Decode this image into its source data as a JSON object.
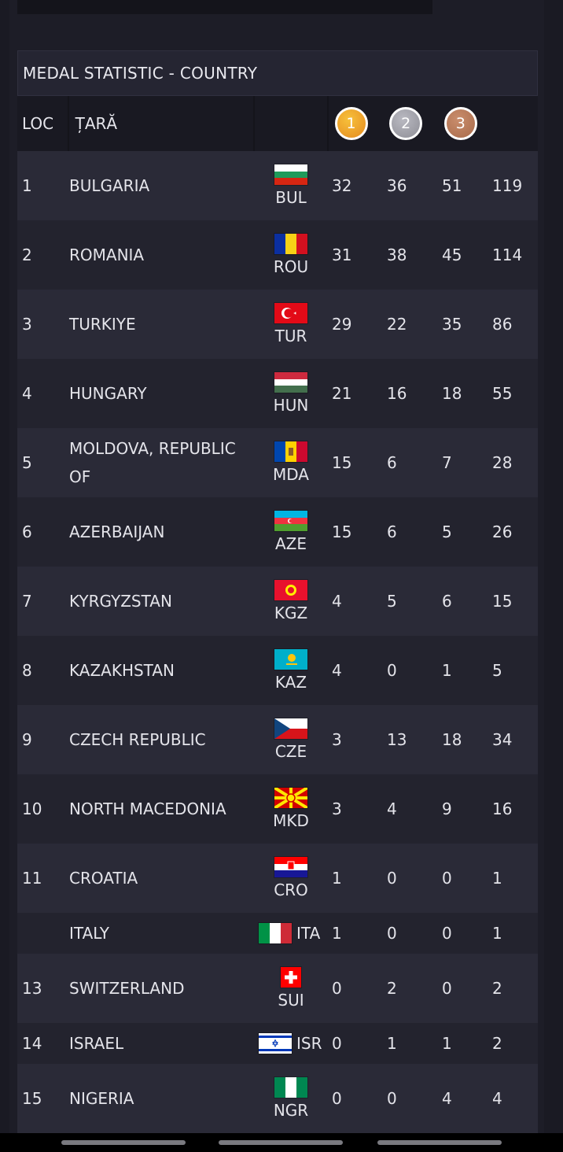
{
  "panel": {
    "title": "MEDAL STATISTIC - COUNTRY",
    "headers": {
      "loc": "LOC",
      "country": "ȚARĂ",
      "gold": "1",
      "silver": "2",
      "bronze": "3"
    }
  },
  "colors": {
    "gold": "#e58a1f",
    "silver": "#8e8e96",
    "bronze": "#a86a4a",
    "row_even": "#2a2a37",
    "row_odd": "#23232e"
  },
  "rows": [
    {
      "loc": "1",
      "name": "BULGARIA",
      "code": "BUL",
      "flag": "bulgaria-flag-icon",
      "gold": "32",
      "silver": "36",
      "bronze": "51",
      "total": "119"
    },
    {
      "loc": "2",
      "name": "ROMANIA",
      "code": "ROU",
      "flag": "romania-flag-icon",
      "gold": "31",
      "silver": "38",
      "bronze": "45",
      "total": "114"
    },
    {
      "loc": "3",
      "name": "TURKIYE",
      "code": "TUR",
      "flag": "turkiye-flag-icon",
      "gold": "29",
      "silver": "22",
      "bronze": "35",
      "total": "86"
    },
    {
      "loc": "4",
      "name": "HUNGARY",
      "code": "HUN",
      "flag": "hungary-flag-icon",
      "gold": "21",
      "silver": "16",
      "bronze": "18",
      "total": "55"
    },
    {
      "loc": "5",
      "name": "MOLDOVA, REPUBLIC OF",
      "code": "MDA",
      "flag": "moldova-flag-icon",
      "gold": "15",
      "silver": "6",
      "bronze": "7",
      "total": "28"
    },
    {
      "loc": "6",
      "name": "AZERBAIJAN",
      "code": "AZE",
      "flag": "azerbaijan-flag-icon",
      "gold": "15",
      "silver": "6",
      "bronze": "5",
      "total": "26"
    },
    {
      "loc": "7",
      "name": "KYRGYZSTAN",
      "code": "KGZ",
      "flag": "kyrgyzstan-flag-icon",
      "gold": "4",
      "silver": "5",
      "bronze": "6",
      "total": "15"
    },
    {
      "loc": "8",
      "name": "KAZAKHSTAN",
      "code": "KAZ",
      "flag": "kazakhstan-flag-icon",
      "gold": "4",
      "silver": "0",
      "bronze": "1",
      "total": "5"
    },
    {
      "loc": "9",
      "name": "CZECH REPUBLIC",
      "code": "CZE",
      "flag": "czech-flag-icon",
      "gold": "3",
      "silver": "13",
      "bronze": "18",
      "total": "34"
    },
    {
      "loc": "10",
      "name": "NORTH MACEDONIA",
      "code": "MKD",
      "flag": "north-macedonia-flag-icon",
      "gold": "3",
      "silver": "4",
      "bronze": "9",
      "total": "16"
    },
    {
      "loc": "11",
      "name": "CROATIA",
      "code": "CRO",
      "flag": "croatia-flag-icon",
      "gold": "1",
      "silver": "0",
      "bronze": "0",
      "total": "1"
    },
    {
      "loc": "",
      "name": "ITALY",
      "code": "ITA",
      "flag": "italy-flag-icon",
      "gold": "1",
      "silver": "0",
      "bronze": "0",
      "total": "1"
    },
    {
      "loc": "13",
      "name": "SWITZERLAND",
      "code": "SUI",
      "flag": "switzerland-flag-icon",
      "gold": "0",
      "silver": "2",
      "bronze": "0",
      "total": "2"
    },
    {
      "loc": "14",
      "name": "ISRAEL",
      "code": "ISR",
      "flag": "israel-flag-icon",
      "gold": "0",
      "silver": "1",
      "bronze": "1",
      "total": "2"
    },
    {
      "loc": "15",
      "name": "NIGERIA",
      "code": "NGR",
      "flag": "nigeria-flag-icon",
      "gold": "0",
      "silver": "0",
      "bronze": "4",
      "total": "4"
    }
  ]
}
